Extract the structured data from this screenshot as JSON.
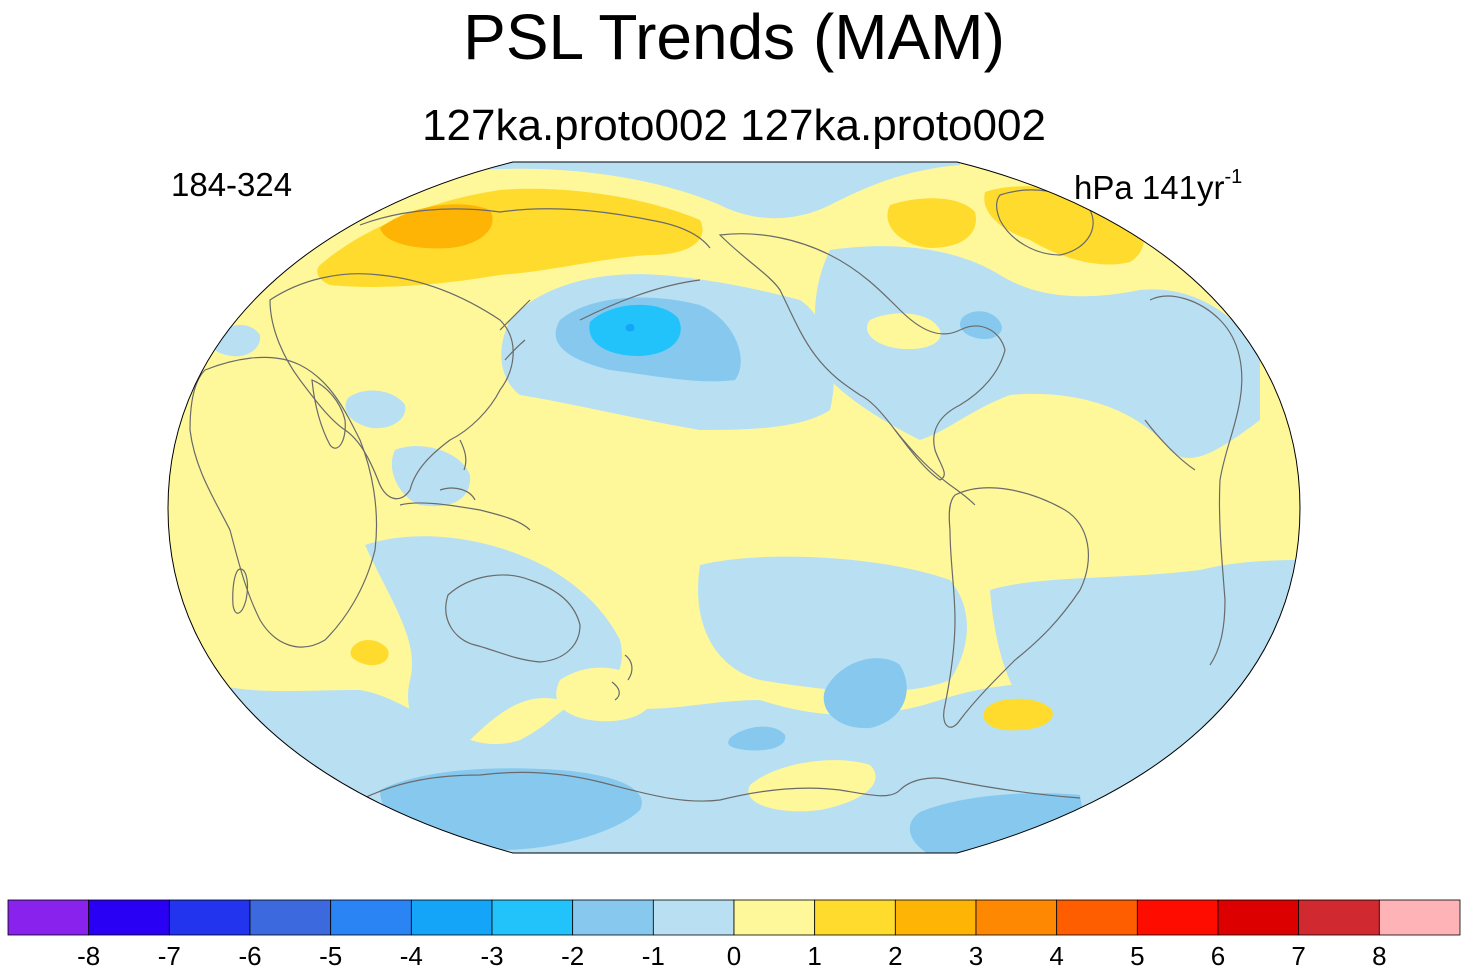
{
  "title": "PSL Trends (MAM)",
  "subtitle": "127ka.proto002  127ka.proto002",
  "left_label": "184-324",
  "units": {
    "base": "hPa 141yr",
    "exponent": "-1"
  },
  "colorbar": {
    "colors": [
      "#8a22ee",
      "#2a00f5",
      "#2234ee",
      "#3d69de",
      "#2a84f4",
      "#14a4f8",
      "#22c3fa",
      "#87c9ee",
      "#b8e0f2",
      "#fef89b",
      "#fedb2d",
      "#feb404",
      "#fe8802",
      "#fe5e00",
      "#fe0c00",
      "#dd0000",
      "#d02a30",
      "#feb4b6"
    ],
    "labels": [
      "-8",
      "-7",
      "-6",
      "-5",
      "-4",
      "-3",
      "-2",
      "-1",
      "0",
      "1",
      "2",
      "3",
      "4",
      "5",
      "6",
      "7",
      "8"
    ]
  },
  "map": {
    "projection": "robinson",
    "palette": {
      "neg1": "#b8e0f2",
      "neg2": "#87c9ee",
      "neg3": "#22c3fa",
      "neg4": "#14a4f8",
      "pos1": "#fef89b",
      "pos2": "#fedb2d",
      "pos3": "#feb404",
      "coast": "#6a6a6a"
    }
  }
}
